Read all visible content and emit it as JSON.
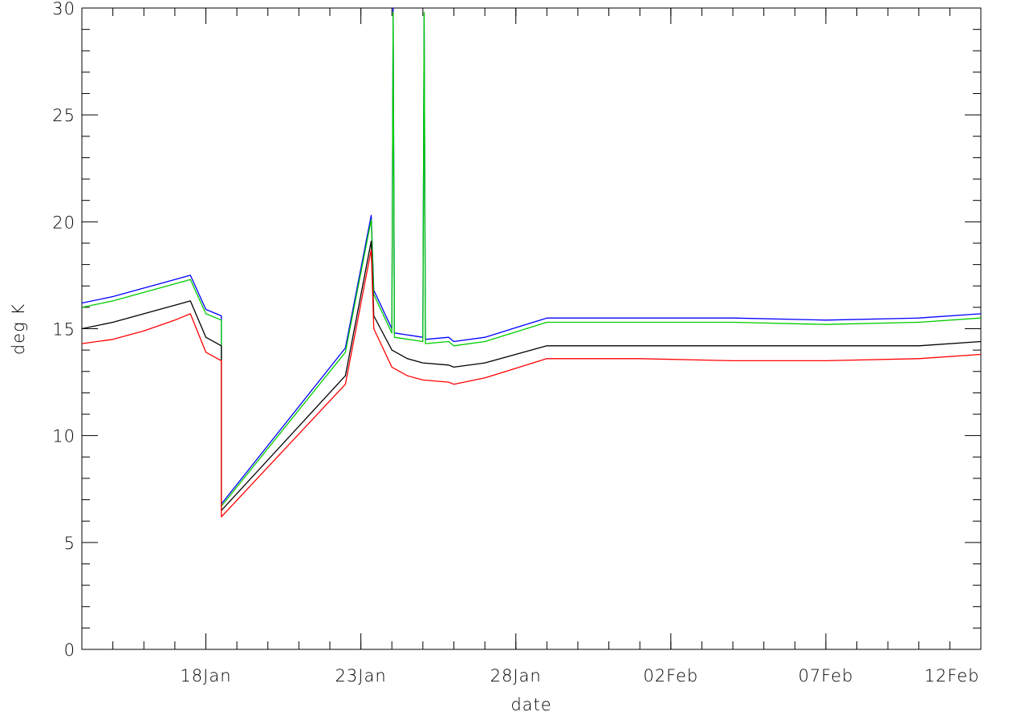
{
  "chart_data": {
    "type": "line",
    "title": "",
    "xlabel": "date",
    "ylabel": "deg K",
    "xlim": [
      "2024-01-14",
      "2024-02-12"
    ],
    "ylim": [
      0,
      30
    ],
    "x_tick_labels": [
      "18Jan",
      "23Jan",
      "28Jan",
      "02Feb",
      "07Feb",
      "12Feb"
    ],
    "x_tick_dates": [
      "2024-01-18",
      "2024-01-23",
      "2024-01-28",
      "2024-02-02",
      "2024-02-07",
      "2024-02-12"
    ],
    "y_ticks": [
      0,
      5,
      10,
      15,
      20,
      25,
      30
    ],
    "grid": false,
    "legend": "none",
    "series": [
      {
        "color": "#0000ff",
        "x": [
          "2024-01-14",
          "2024-01-15",
          "2024-01-16",
          "2024-01-17",
          "2024-01-17T12:00",
          "2024-01-18",
          "2024-01-18T12:00",
          "2024-01-18T12:01",
          "2024-01-22T12:00",
          "2024-01-23T08:00",
          "2024-01-23T10:00",
          "2024-01-24",
          "2024-01-24T01:00",
          "2024-01-24T02:00",
          "2024-01-25",
          "2024-01-25T01:00",
          "2024-01-25T02:00",
          "2024-01-25T20:00",
          "2024-01-26T00:00",
          "2024-01-27",
          "2024-01-29",
          "2024-02-01",
          "2024-02-04",
          "2024-02-07",
          "2024-02-10",
          "2024-02-12"
        ],
        "y": [
          16.2,
          16.5,
          16.9,
          17.3,
          17.5,
          15.9,
          15.6,
          6.8,
          14.1,
          20.3,
          16.8,
          15.0,
          30.0,
          14.8,
          14.6,
          29.6,
          14.5,
          14.6,
          14.4,
          14.6,
          15.5,
          15.5,
          15.5,
          15.4,
          15.5,
          15.7
        ]
      },
      {
        "color": "#00cc00",
        "x": [
          "2024-01-14",
          "2024-01-15",
          "2024-01-16",
          "2024-01-17",
          "2024-01-17T12:00",
          "2024-01-18",
          "2024-01-18T12:00",
          "2024-01-18T12:01",
          "2024-01-22T12:00",
          "2024-01-23T08:00",
          "2024-01-23T10:00",
          "2024-01-24",
          "2024-01-24T01:00",
          "2024-01-24T02:00",
          "2024-01-25",
          "2024-01-25T01:00",
          "2024-01-25T02:00",
          "2024-01-25T20:00",
          "2024-01-26T00:00",
          "2024-01-27",
          "2024-01-29",
          "2024-02-01",
          "2024-02-04",
          "2024-02-07",
          "2024-02-10",
          "2024-02-12"
        ],
        "y": [
          16.0,
          16.3,
          16.7,
          17.1,
          17.3,
          15.7,
          15.4,
          6.7,
          13.9,
          20.1,
          16.6,
          14.8,
          29.8,
          14.6,
          14.4,
          29.8,
          14.3,
          14.4,
          14.2,
          14.4,
          15.3,
          15.3,
          15.3,
          15.2,
          15.3,
          15.5
        ]
      },
      {
        "color": "#000000",
        "x": [
          "2024-01-14",
          "2024-01-15",
          "2024-01-16",
          "2024-01-17",
          "2024-01-17T12:00",
          "2024-01-18",
          "2024-01-18T12:00",
          "2024-01-18T12:01",
          "2024-01-22T12:00",
          "2024-01-23T08:00",
          "2024-01-23T10:00",
          "2024-01-24",
          "2024-01-24T12:00",
          "2024-01-25",
          "2024-01-25T20:00",
          "2024-01-26T00:00",
          "2024-01-27",
          "2024-01-29",
          "2024-02-01",
          "2024-02-04",
          "2024-02-07",
          "2024-02-10",
          "2024-02-12"
        ],
        "y": [
          15.0,
          15.3,
          15.7,
          16.1,
          16.3,
          14.6,
          14.2,
          6.5,
          12.8,
          19.1,
          15.6,
          14.0,
          13.6,
          13.4,
          13.3,
          13.2,
          13.4,
          14.2,
          14.2,
          14.2,
          14.2,
          14.2,
          14.4
        ]
      },
      {
        "color": "#ff0000",
        "x": [
          "2024-01-14",
          "2024-01-15",
          "2024-01-16",
          "2024-01-17",
          "2024-01-17T12:00",
          "2024-01-18",
          "2024-01-18T12:00",
          "2024-01-18T12:01",
          "2024-01-22T12:00",
          "2024-01-23T08:00",
          "2024-01-23T10:00",
          "2024-01-24",
          "2024-01-24T12:00",
          "2024-01-25",
          "2024-01-25T20:00",
          "2024-01-26T00:00",
          "2024-01-27",
          "2024-01-29",
          "2024-02-01",
          "2024-02-04",
          "2024-02-07",
          "2024-02-10",
          "2024-02-12"
        ],
        "y": [
          14.3,
          14.5,
          14.9,
          15.4,
          15.7,
          13.9,
          13.5,
          6.2,
          12.4,
          18.7,
          15.0,
          13.2,
          12.8,
          12.6,
          12.5,
          12.4,
          12.7,
          13.6,
          13.6,
          13.5,
          13.5,
          13.6,
          13.8
        ]
      }
    ]
  }
}
